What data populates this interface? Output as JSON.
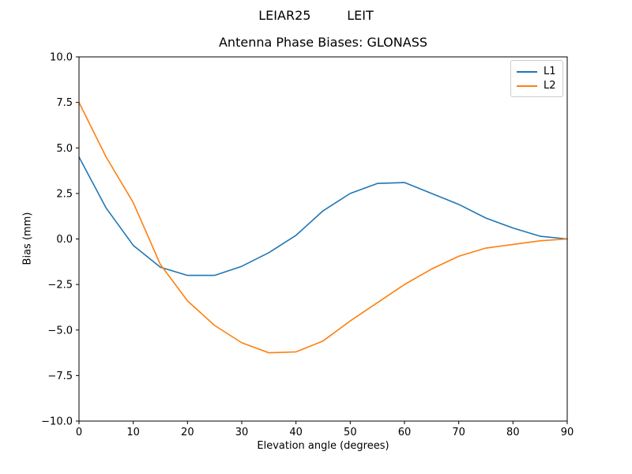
{
  "figure": {
    "suptitle": "LEIAR25         LEIT",
    "title": "Antenna Phase Biases: GLONASS"
  },
  "chart_data": {
    "type": "line",
    "suptitle": "LEIAR25         LEIT",
    "title": "Antenna Phase Biases: GLONASS",
    "xlabel": "Elevation angle (degrees)",
    "ylabel": "Bias (mm)",
    "xlim": [
      0,
      90
    ],
    "ylim": [
      -10,
      10
    ],
    "xticks": [
      0,
      10,
      20,
      30,
      40,
      50,
      60,
      70,
      80,
      90
    ],
    "yticks": [
      -10,
      -7.5,
      -5,
      -2.5,
      0,
      2.5,
      5,
      7.5,
      10
    ],
    "grid": false,
    "legend_position": "upper right",
    "x": [
      0,
      5,
      10,
      15,
      20,
      25,
      30,
      35,
      40,
      45,
      50,
      55,
      60,
      65,
      70,
      75,
      80,
      85,
      90
    ],
    "series": [
      {
        "name": "L1",
        "color": "#1f77b4",
        "values": [
          4.5,
          1.7,
          -0.35,
          -1.55,
          -2.0,
          -2.0,
          -1.5,
          -0.75,
          0.2,
          1.55,
          2.5,
          3.05,
          3.1,
          2.5,
          1.9,
          1.15,
          0.6,
          0.15,
          0.0
        ]
      },
      {
        "name": "L2",
        "color": "#ff7f0e",
        "values": [
          7.5,
          4.5,
          2.0,
          -1.4,
          -3.4,
          -4.75,
          -5.7,
          -6.25,
          -6.2,
          -5.6,
          -4.5,
          -3.5,
          -2.5,
          -1.65,
          -0.95,
          -0.5,
          -0.3,
          -0.1,
          0.0
        ]
      }
    ]
  }
}
